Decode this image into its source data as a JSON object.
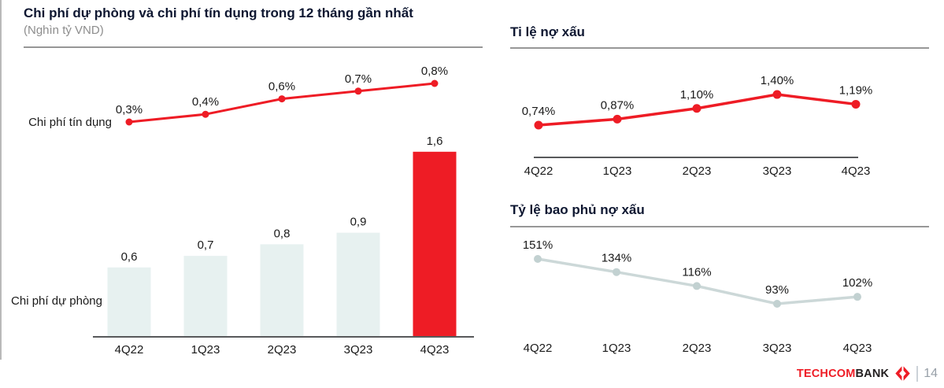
{
  "chart_data": [
    {
      "type": "bar",
      "title": "Chi phí dự phòng và chi phí tín dụng trong 12 tháng gần nhất",
      "subtitle": "(Nghìn tỷ VND)",
      "categories": [
        "4Q22",
        "1Q23",
        "2Q23",
        "3Q23",
        "4Q23"
      ],
      "grid": false,
      "legend_position": "left",
      "series": [
        {
          "name": "Chi phí tín dụng",
          "type": "line",
          "unit": "%",
          "values": [
            0.3,
            0.4,
            0.6,
            0.7,
            0.8
          ],
          "labels": [
            "0,3%",
            "0,4%",
            "0,6%",
            "0,7%",
            "0,8%"
          ],
          "color": "#ee1c25"
        },
        {
          "name": "Chi phí dự phòng",
          "type": "bar",
          "unit": "nghìn tỷ VND",
          "values": [
            0.6,
            0.7,
            0.8,
            0.9,
            1.6
          ],
          "labels": [
            "0,6",
            "0,7",
            "0,8",
            "0,9",
            "1,6"
          ],
          "colors": [
            "#e7f1f0",
            "#e7f1f0",
            "#e7f1f0",
            "#e7f1f0",
            "#ee1c25"
          ]
        }
      ],
      "ylim": [
        0,
        1.8
      ]
    },
    {
      "type": "line",
      "title": "Ti lệ nợ xấu",
      "categories": [
        "4Q22",
        "1Q23",
        "2Q23",
        "3Q23",
        "4Q23"
      ],
      "values": [
        0.74,
        0.87,
        1.1,
        1.4,
        1.19
      ],
      "labels": [
        "0,74%",
        "0,87%",
        "1,10%",
        "1,40%",
        "1,19%"
      ],
      "color": "#ee1c25",
      "axis_line": true,
      "grid": false
    },
    {
      "type": "line",
      "title": "Tỷ lệ bao phủ nợ xấu",
      "categories": [
        "4Q22",
        "1Q23",
        "2Q23",
        "3Q23",
        "4Q23"
      ],
      "values": [
        151,
        134,
        116,
        93,
        102
      ],
      "labels": [
        "151%",
        "134%",
        "116%",
        "93%",
        "102%"
      ],
      "color": "#ccd8d8",
      "dot_color": "#c2d1d1",
      "axis_line": false,
      "grid": false
    }
  ],
  "footer": {
    "brand_part1": "TECHCOM",
    "brand_part2": "BANK",
    "page": "14"
  },
  "colors": {
    "accent_red": "#ee1c25",
    "bar_light": "#e7f1f0",
    "coverage_line": "#ccd8d8",
    "axis_grey": "#58595b",
    "title_navy": "#0e1731",
    "subtitle_grey": "#8d8d8d"
  }
}
